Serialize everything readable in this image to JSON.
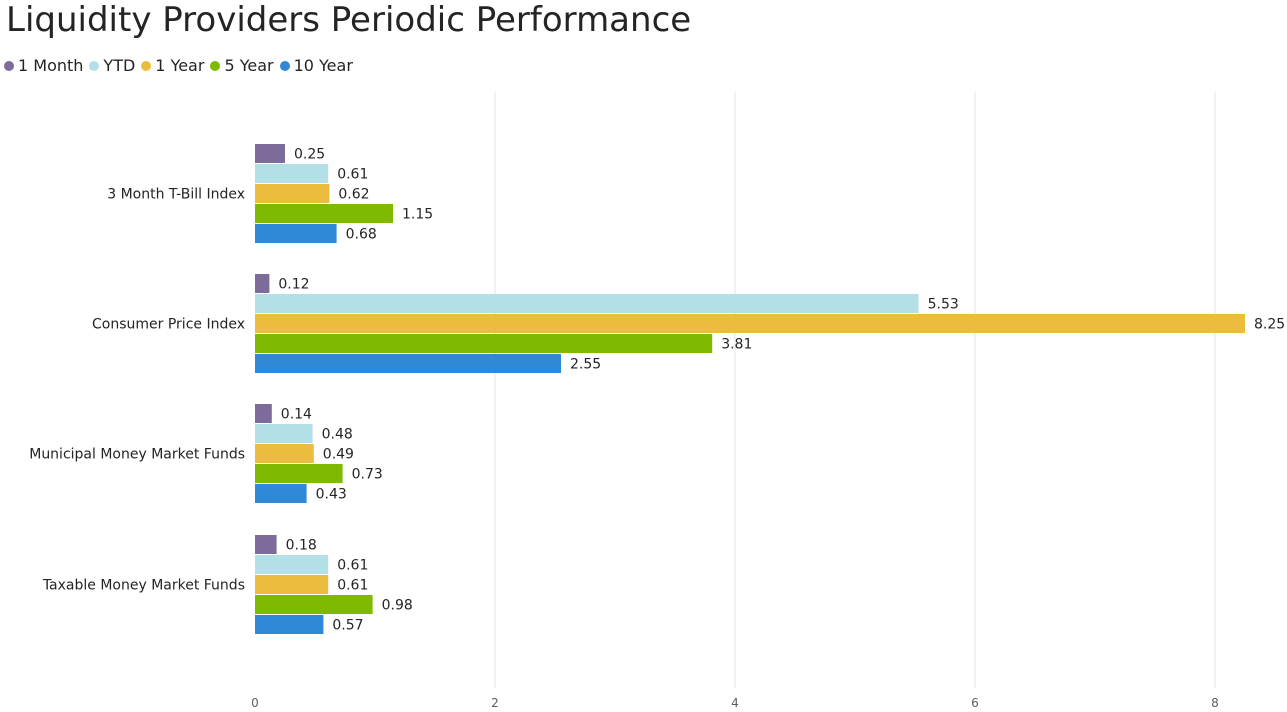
{
  "chart_data": {
    "type": "bar",
    "orientation": "horizontal",
    "title": "Liquidity Providers Periodic Performance",
    "categories": [
      "3 Month T-Bill Index",
      "Consumer Price Index",
      "Municipal Money Market Funds",
      "Taxable Money Market Funds"
    ],
    "series": [
      {
        "name": "1 Month",
        "color": "#7d6b9a",
        "values": [
          0.25,
          0.12,
          0.14,
          0.18
        ]
      },
      {
        "name": "YTD",
        "color": "#b3dfe6",
        "values": [
          0.61,
          5.53,
          0.48,
          0.61
        ]
      },
      {
        "name": "1 Year",
        "color": "#ebbc3e",
        "values": [
          0.62,
          8.25,
          0.49,
          0.61
        ]
      },
      {
        "name": "5 Year",
        "color": "#7fba00",
        "values": [
          1.15,
          3.81,
          0.73,
          0.98
        ]
      },
      {
        "name": "10 Year",
        "color": "#2f89d6",
        "values": [
          0.68,
          2.55,
          0.43,
          0.57
        ]
      }
    ],
    "xticks": [
      "0",
      "2",
      "4",
      "6",
      "8"
    ],
    "xlim": [
      0,
      8.25
    ],
    "xlabel": "",
    "ylabel": "",
    "grid": true,
    "legend_position": "top-left",
    "data_labels": true
  }
}
